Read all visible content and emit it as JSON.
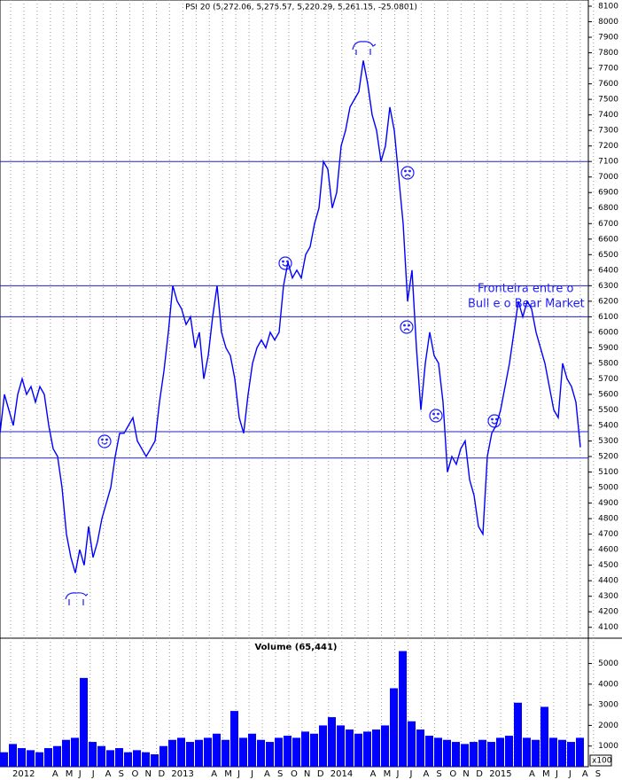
{
  "chart_data": [
    {
      "type": "line",
      "title": "PSI 20 (5,272.06, 5,275.57, 5,220.29, 5,261.15, -25.0801)",
      "color": "#0000ff",
      "values": [
        5350,
        5600,
        5500,
        5400,
        5600,
        5700,
        5600,
        5650,
        5550,
        5650,
        5600,
        5400,
        5250,
        5200,
        5000,
        4700,
        4550,
        4450,
        4600,
        4500,
        4750,
        4550,
        4650,
        4800,
        4900,
        5000,
        5200,
        5350,
        5350,
        5400,
        5450,
        5300,
        5250,
        5200,
        5250,
        5300,
        5550,
        5750,
        6000,
        6300,
        6200,
        6150,
        6050,
        6100,
        5900,
        6000,
        5700,
        5850,
        6100,
        6300,
        6000,
        5900,
        5850,
        5700,
        5450,
        5350,
        5600,
        5800,
        5900,
        5950,
        5900,
        6000,
        5950,
        6000,
        6300,
        6450,
        6350,
        6400,
        6350,
        6500,
        6550,
        6700,
        6800,
        7100,
        7050,
        6800,
        6900,
        7200,
        7300,
        7450,
        7500,
        7550,
        7750,
        7600,
        7400,
        7300,
        7100,
        7200,
        7450,
        7300,
        7000,
        6700,
        6200,
        6400,
        5900,
        5500,
        5800,
        6000,
        5850,
        5800,
        5550,
        5100,
        5200,
        5150,
        5250,
        5300,
        5050,
        4950,
        4750,
        4700,
        5200,
        5350,
        5400,
        5500,
        5650,
        5800,
        6000,
        6200,
        6100,
        6200,
        6150,
        6000,
        5900,
        5800,
        5650,
        5500,
        5450,
        5800,
        5700,
        5650,
        5550,
        5260
      ],
      "levels": [
        7100,
        6300,
        6100,
        5360,
        5190
      ],
      "ylim": [
        4030,
        8140
      ],
      "yticks": [
        4100,
        4200,
        4300,
        4400,
        4500,
        4600,
        4700,
        4800,
        4900,
        5000,
        5100,
        5200,
        5300,
        5400,
        5500,
        5600,
        5700,
        5800,
        5900,
        6000,
        6100,
        6200,
        6300,
        6400,
        6500,
        6600,
        6700,
        6800,
        6900,
        7000,
        7100,
        7200,
        7300,
        7400,
        7500,
        7600,
        7700,
        7800,
        7900,
        8000,
        8100
      ],
      "annotations": [
        "Fronteira entre o",
        "Bull e o Bear Market"
      ]
    },
    {
      "type": "bar",
      "title": "Volume (65,441)",
      "color": "#0000ff",
      "values": [
        700,
        1100,
        900,
        800,
        700,
        900,
        1000,
        1300,
        1400,
        4300,
        1200,
        1000,
        800,
        900,
        700,
        800,
        700,
        600,
        1000,
        1300,
        1400,
        1200,
        1300,
        1400,
        1600,
        1300,
        2700,
        1400,
        1600,
        1300,
        1200,
        1400,
        1500,
        1400,
        1700,
        1600,
        2000,
        2400,
        2000,
        1800,
        1600,
        1700,
        1800,
        2000,
        3800,
        5600,
        2200,
        1800,
        1500,
        1400,
        1300,
        1200,
        1100,
        1200,
        1300,
        1200,
        1400,
        1500,
        3100,
        1400,
        1300,
        2900,
        1400,
        1300,
        1200,
        1400
      ],
      "ylim": [
        0,
        6140
      ],
      "yticks": [
        1000,
        2000,
        3000,
        4000,
        5000
      ],
      "unit_label": "x100"
    }
  ],
  "x_axis": {
    "labels": [
      "2012",
      null,
      null,
      "A",
      "M",
      "J",
      "J",
      "A",
      "S",
      "O",
      "N",
      "D",
      "2013",
      null,
      null,
      "A",
      "M",
      "J",
      "J",
      "A",
      "S",
      "O",
      "N",
      "D",
      "2014",
      null,
      null,
      "A",
      "M",
      "J",
      "J",
      "A",
      "S",
      "O",
      "N",
      "D",
      "2015",
      null,
      null,
      "A",
      "M",
      "J",
      "J",
      "A",
      "S"
    ]
  }
}
